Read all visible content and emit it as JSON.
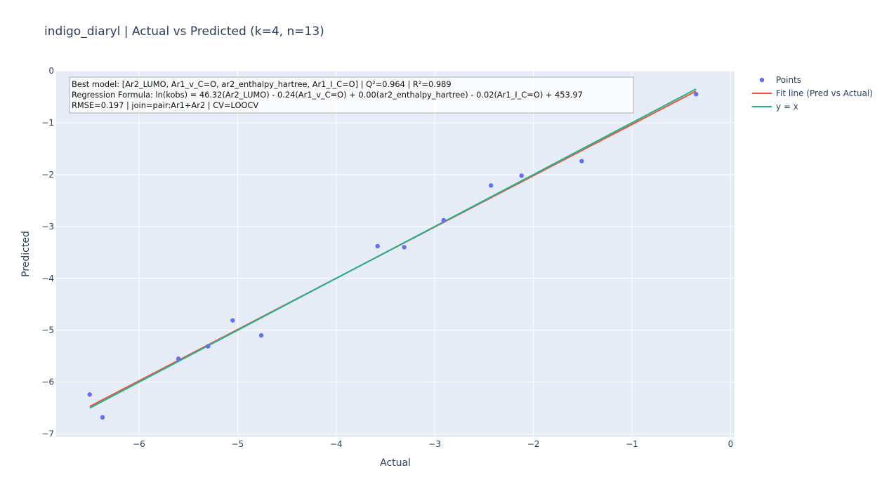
{
  "chart_data": {
    "type": "scatter",
    "title": "indigo_diaryl | Actual vs Predicted (k=4, n=13)",
    "xlabel": "Actual",
    "ylabel": "Predicted",
    "xlim": [
      -6.84,
      0.04
    ],
    "ylim": [
      -7.06,
      0
    ],
    "xticks": [
      -6,
      -5,
      -4,
      -3,
      -2,
      -1,
      0
    ],
    "yticks": [
      0,
      -1,
      -2,
      -3,
      -4,
      -5,
      -6,
      -7
    ],
    "xtick_labels": [
      "−6",
      "−5",
      "−4",
      "−3",
      "−2",
      "−1",
      "0"
    ],
    "ytick_labels": [
      "0",
      "−1",
      "−2",
      "−3",
      "−4",
      "−5",
      "−6",
      "−7"
    ],
    "grid": true,
    "legend_position": "top-right",
    "series": [
      {
        "name": "Points",
        "kind": "markers",
        "color": "#636efa",
        "x": [
          -6.5,
          -6.37,
          -5.6,
          -5.3,
          -5.05,
          -4.76,
          -3.58,
          -3.31,
          -2.91,
          -2.43,
          -2.12,
          -1.51,
          -0.35
        ],
        "y": [
          -6.24,
          -6.68,
          -5.55,
          -5.31,
          -4.81,
          -5.1,
          -3.38,
          -3.4,
          -2.88,
          -2.21,
          -2.02,
          -1.74,
          -0.45
        ]
      },
      {
        "name": "Fit line (Pred vs Actual)",
        "kind": "line",
        "color": "#ef553b",
        "x": [
          -6.5,
          -0.35
        ],
        "y": [
          -6.47,
          -0.39
        ]
      },
      {
        "name": "y = x",
        "kind": "line",
        "color": "#20b48c",
        "x": [
          -6.5,
          -0.35
        ],
        "y": [
          -6.5,
          -0.35
        ]
      }
    ],
    "annotation": {
      "lines": [
        "Best model: [Ar2_LUMO, Ar1_v_C=O, ar2_enthalpy_hartree, Ar1_I_C=O] | Q²=0.964 | R²=0.989",
        "Regression Formula: ln(kobs) = 46.32(Ar2_LUMO) - 0.24(Ar1_v_C=O) + 0.00(ar2_enthalpy_hartree) - 0.02(Ar1_I_C=O) + 453.97",
        "RMSE=0.197 | join=pair:Ar1+Ar2 | CV=LOOCV"
      ]
    },
    "colors": {
      "plot_bg": "#e5ecf6",
      "grid": "#ffffff",
      "text": "#2a3f5f"
    }
  }
}
